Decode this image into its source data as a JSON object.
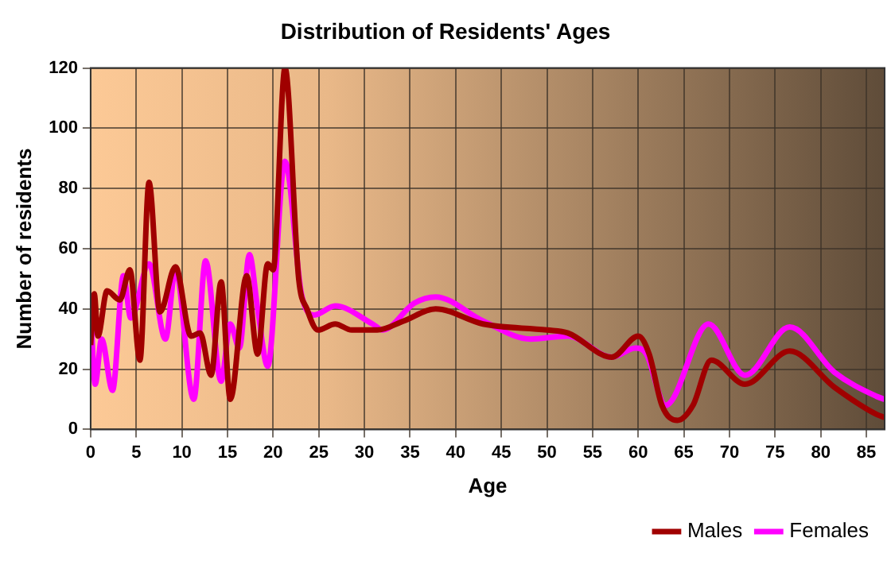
{
  "chart_data": {
    "type": "line",
    "title": "Distribution of Residents' Ages",
    "xlabel": "Age",
    "ylabel": "Number of residents",
    "xlim": [
      0,
      87
    ],
    "xticks": [
      0,
      5,
      10,
      15,
      20,
      25,
      30,
      35,
      40,
      45,
      50,
      55,
      60,
      65,
      70,
      75,
      80,
      85
    ],
    "ylim": [
      0,
      120
    ],
    "yticks": [
      0,
      20,
      40,
      60,
      80,
      100,
      120
    ],
    "grid": true,
    "legend": "bottom right",
    "marker": "none",
    "line_style": "solid",
    "series": [
      {
        "name": "Males",
        "color": "#a00000",
        "x": [
          0,
          0.4,
          0.8,
          1.8,
          3.2,
          4.3,
          5.4,
          6.4,
          7.6,
          9.3,
          11,
          12,
          13.2,
          14.3,
          15.3,
          17.1,
          18.3,
          19.4,
          20,
          21.3,
          22.8,
          23.7,
          24.9,
          26.8,
          28.6,
          31.4,
          34.3,
          37.8,
          43,
          50,
          52.3,
          57.1,
          60,
          61.2,
          62.6,
          64.3,
          66,
          68,
          71.7,
          76.6,
          81.5,
          86.1,
          87
        ],
        "values": [
          28,
          45,
          31,
          46,
          43,
          53,
          23,
          82,
          39,
          54,
          31,
          32,
          18,
          49,
          10,
          51,
          25,
          55,
          53,
          120,
          50,
          40,
          33,
          35,
          33,
          33,
          36,
          40,
          35,
          33,
          32,
          24,
          31,
          25,
          8,
          3,
          8,
          23,
          15,
          26,
          14,
          5,
          4
        ]
      },
      {
        "name": "Females",
        "color": "#ff00ff",
        "x": [
          0,
          0.5,
          1.2,
          2.4,
          3.6,
          4.4,
          6.4,
          8.2,
          9.3,
          11.3,
          12.6,
          14.3,
          15.3,
          16.3,
          17.4,
          18.3,
          19.4,
          21.3,
          23.1,
          24.5,
          26.8,
          30.9,
          32,
          35.5,
          37.8,
          43,
          48.2,
          52.3,
          57.1,
          59.7,
          60.9,
          63,
          67.7,
          71.7,
          76.6,
          81.5,
          86.1,
          87
        ],
        "values": [
          40,
          15,
          30,
          13,
          51,
          37,
          55,
          30,
          53,
          10,
          56,
          16,
          35,
          27,
          58,
          40,
          21,
          89,
          45,
          38,
          41,
          35,
          33,
          42,
          44,
          36,
          30,
          31,
          24,
          27,
          25,
          8,
          35,
          18,
          34,
          19,
          11,
          10
        ]
      }
    ]
  }
}
